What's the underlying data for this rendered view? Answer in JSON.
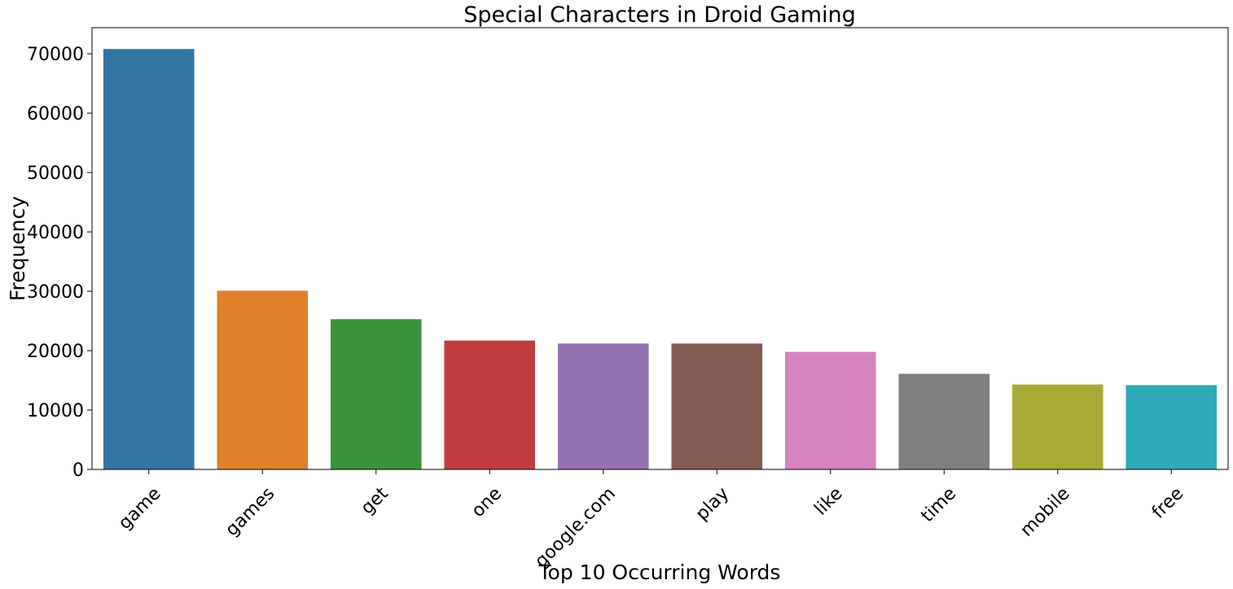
{
  "chart_data": {
    "type": "bar",
    "title": "Special Characters in Droid Gaming",
    "xlabel": "Top 10 Occurring Words",
    "ylabel": "Frequency",
    "categories": [
      "game",
      "games",
      "get",
      "one",
      "google.com",
      "play",
      "like",
      "time",
      "mobile",
      "free"
    ],
    "values": [
      70800,
      30100,
      25300,
      21700,
      21200,
      21200,
      19800,
      16100,
      14300,
      14200
    ],
    "colors": [
      "#3274a1",
      "#e1812c",
      "#3a923a",
      "#c03d3e",
      "#9372b2",
      "#845b53",
      "#d684bd",
      "#7f7f7f",
      "#a9aa35",
      "#2eaab8"
    ],
    "ylim": [
      0,
      74400
    ],
    "yticks": [
      0,
      10000,
      20000,
      30000,
      40000,
      50000,
      60000,
      70000
    ],
    "grid": false,
    "legend": "none"
  }
}
